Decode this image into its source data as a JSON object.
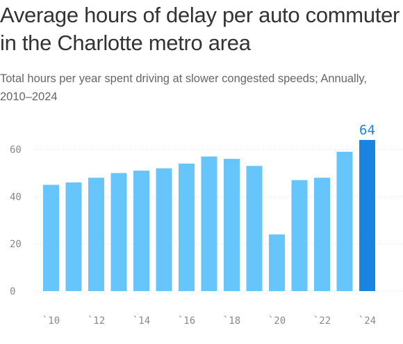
{
  "title": "Average hours of delay per auto commuter in the Charlotte metro area",
  "subtitle": "Total hours per year spent driving at slower congested speeds; Annually, 2010–2024",
  "colors": {
    "bar": "#66c5fb",
    "bar_highlight": "#1a84e0",
    "gridline": "#dcdcdc",
    "tick_text": "#888888"
  },
  "chart_data": {
    "type": "bar",
    "title": "Average hours of delay per auto commuter in the Charlotte metro area",
    "subtitle": "Total hours per year spent driving at slower congested speeds; Annually, 2010–2024",
    "xlabel": "",
    "ylabel": "",
    "categories": [
      "2010",
      "2011",
      "2012",
      "2013",
      "2014",
      "2015",
      "2016",
      "2017",
      "2018",
      "2019",
      "2020",
      "2021",
      "2022",
      "2023",
      "2024"
    ],
    "values": [
      45,
      46,
      48,
      50,
      51,
      52,
      54,
      57,
      56,
      53,
      24,
      47,
      48,
      59,
      64
    ],
    "x_tick_labels": [
      {
        "index": 0,
        "label": "`10"
      },
      {
        "index": 2,
        "label": "`12"
      },
      {
        "index": 4,
        "label": "`14"
      },
      {
        "index": 6,
        "label": "`16"
      },
      {
        "index": 8,
        "label": "`18"
      },
      {
        "index": 10,
        "label": "`20"
      },
      {
        "index": 12,
        "label": "`22"
      },
      {
        "index": 14,
        "label": "`24"
      }
    ],
    "y_ticks": [
      0,
      20,
      40,
      60
    ],
    "ylim": [
      0,
      64
    ],
    "highlight_index": 14,
    "data_labels": [
      {
        "index": 14,
        "label": "64"
      }
    ],
    "grid": true,
    "legend": "none"
  }
}
